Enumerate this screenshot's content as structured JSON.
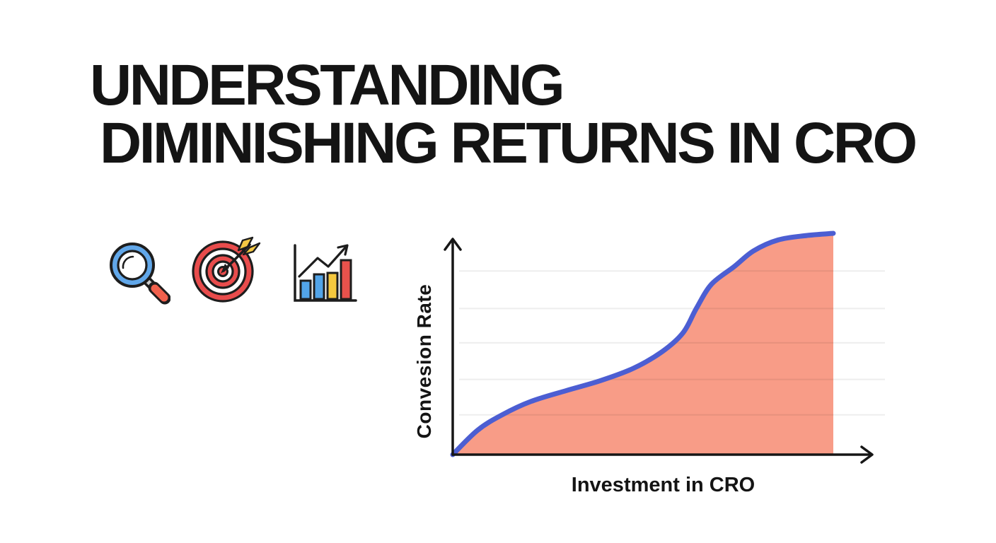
{
  "title": {
    "line1": "UNDERSTANDING",
    "line2": "DIMINISHING RETURNS IN CRO",
    "color": "#141414"
  },
  "icons": {
    "magnifier": {
      "name": "magnifier-icon",
      "lens_color": "#61a7e9",
      "glass_color": "#ffffff",
      "handle_color": "#f0614d",
      "collar_color": "#cfcfcf",
      "outline_color": "#1d1d1d"
    },
    "target": {
      "name": "target-icon",
      "ring_color": "#e84c4c",
      "inner_ring_color": "#ffffff",
      "fletching_color": "#f3c844",
      "outline_color": "#1d1d1d"
    },
    "bar_chart": {
      "name": "bar-chart-icon",
      "bar_colors": [
        "#52a4e8",
        "#52a4e8",
        "#f5c83e",
        "#e8524c"
      ],
      "outline_color": "#1d1d1d"
    }
  },
  "chart_data": {
    "type": "area",
    "title": "",
    "xlabel": "Investment in CRO",
    "ylabel": "Convesion Rate",
    "x": [
      0,
      6.5,
      13,
      20.5,
      30,
      39,
      47.5,
      55,
      60.5,
      64,
      68,
      74,
      79,
      85.5,
      93,
      100
    ],
    "y": [
      0,
      11,
      18,
      24,
      29,
      33.5,
      39,
      46.5,
      55,
      66,
      77,
      85,
      92,
      97,
      99,
      100
    ],
    "xlim": [
      0,
      100
    ],
    "ylim": [
      0,
      100
    ],
    "x_ticks": [],
    "y_ticks": [],
    "grid": "horizontal",
    "gridlines_y": [
      18,
      34,
      50.5,
      66,
      83
    ],
    "legend": "none",
    "line_color": "#4c5ed2",
    "fill_color": "#f89c87",
    "grid_color": "#e9e9e9",
    "axis_color": "#161616",
    "description": "Conceptual S-curve of diminishing returns: conversion rate rises quickly with initial CRO investment, plateaus, rises steeply again, then flattens at high investment."
  }
}
